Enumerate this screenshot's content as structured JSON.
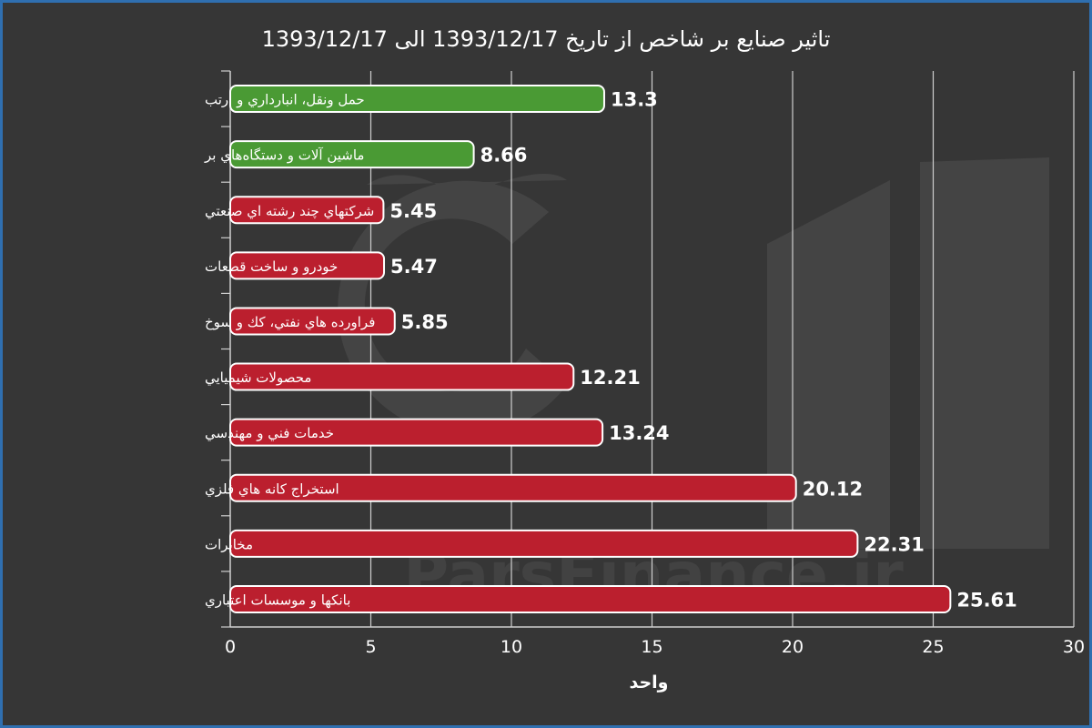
{
  "chart_data": {
    "type": "bar",
    "orientation": "horizontal",
    "title": "تاثیر صنایع بر شاخص از تاریخ 1393/12/17 الی 1393/12/17",
    "xlabel": "واحد",
    "ylabel": "",
    "xlim": [
      0,
      30
    ],
    "x_ticks": [
      "0",
      "5",
      "10",
      "15",
      "20",
      "25",
      "30"
    ],
    "grid": "vertical",
    "legend": "none",
    "watermark": "ParsFinance.ir",
    "colors": {
      "positive": "#4a9a34",
      "negative": "#bb1f2e",
      "background": "#363636",
      "border": "#2f6fb0",
      "text": "#ffffff",
      "grid": "#cfcfcf"
    },
    "categories": [
      "حمل ونقل، انبارداري و ارتب",
      "ماشين آلات و دستگاه‌هاي بر",
      "شرکتهاي چند رشته اي صنعتي",
      "خودرو و ساخت قطعات",
      "فراورده هاي نفتي، كك و سوخ",
      "محصولات شيميايي",
      "خدمات فني و مهندسي",
      "استخراج كانه هاي فلزي",
      "مخابرات",
      "بانكها و موسسات اعتباري"
    ],
    "values": [
      13.3,
      8.66,
      5.45,
      5.47,
      5.85,
      12.21,
      13.24,
      20.12,
      22.31,
      25.61
    ],
    "value_labels": [
      "13.3",
      "8.66",
      "5.45",
      "5.47",
      "5.85",
      "12.21",
      "13.24",
      "20.12",
      "22.31",
      "25.61"
    ],
    "direction": [
      "positive",
      "positive",
      "negative",
      "negative",
      "negative",
      "negative",
      "negative",
      "negative",
      "negative",
      "negative"
    ]
  }
}
